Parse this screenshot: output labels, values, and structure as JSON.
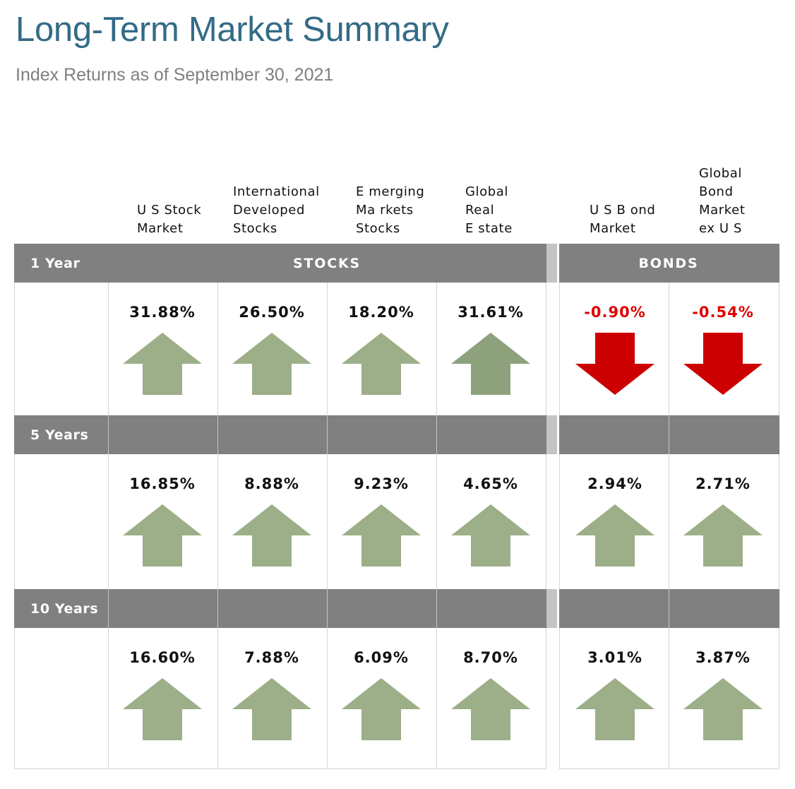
{
  "header": {
    "title": "Long-Term Market Summary",
    "subtitle": "Index Returns as of September 30, 2021"
  },
  "columns": [
    {
      "label": "U S Stock\nMarket",
      "group": "stocks"
    },
    {
      "label": "International\nDeveloped\nStocks",
      "group": "stocks"
    },
    {
      "label": "E merging\nMa rkets\nStocks",
      "group": "stocks"
    },
    {
      "label": "Global\nReal\nE state",
      "group": "stocks"
    },
    {
      "label": "U S B ond\nMarket",
      "group": "bonds"
    },
    {
      "label": "Global\nBond\nMarket\nex U S",
      "group": "bonds"
    }
  ],
  "groups": {
    "stocks": "STOCKS",
    "bonds": "BONDS"
  },
  "periods": [
    {
      "label": "1 Year",
      "values": [
        {
          "text": "31.88%",
          "direction": "up"
        },
        {
          "text": "26.50%",
          "direction": "up"
        },
        {
          "text": "18.20%",
          "direction": "up"
        },
        {
          "text": "31.61%",
          "direction": "up",
          "shade": "dark"
        },
        {
          "text": "-0.90%",
          "direction": "down"
        },
        {
          "text": "-0.54%",
          "direction": "down"
        }
      ]
    },
    {
      "label": "5 Years",
      "values": [
        {
          "text": "16.85%",
          "direction": "up"
        },
        {
          "text": "8.88%",
          "direction": "up"
        },
        {
          "text": "9.23%",
          "direction": "up"
        },
        {
          "text": "4.65%",
          "direction": "up"
        },
        {
          "text": "2.94%",
          "direction": "up"
        },
        {
          "text": "2.71%",
          "direction": "up"
        }
      ]
    },
    {
      "label": "10 Years",
      "values": [
        {
          "text": "16.60%",
          "direction": "up"
        },
        {
          "text": "7.88%",
          "direction": "up"
        },
        {
          "text": "6.09%",
          "direction": "up"
        },
        {
          "text": "8.70%",
          "direction": "up"
        },
        {
          "text": "3.01%",
          "direction": "up"
        },
        {
          "text": "3.87%",
          "direction": "up"
        }
      ]
    }
  ],
  "colors": {
    "title": "#336b87",
    "band": "#808080",
    "arrow_up": "#9caf88",
    "arrow_up_dark": "#8da27c",
    "arrow_down": "#cc0000",
    "negative_text": "#e00000"
  }
}
